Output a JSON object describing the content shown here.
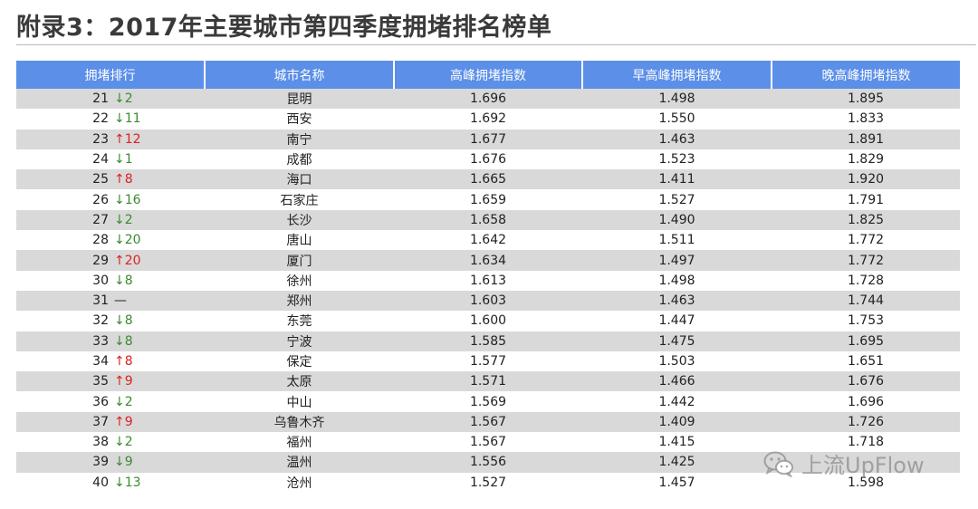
{
  "title": "附录3：2017年主要城市第四季度拥堵排名榜单",
  "table": {
    "headers": [
      "拥堵排行",
      "城市名称",
      "高峰拥堵指数",
      "早高峰拥堵指数",
      "晚高峰拥堵指数"
    ],
    "rows": [
      {
        "rank": "21",
        "change": "↓2",
        "dir": "down",
        "city": "昆明",
        "peak": "1.696",
        "morning": "1.498",
        "evening": "1.895"
      },
      {
        "rank": "22",
        "change": "↓11",
        "dir": "down",
        "city": "西安",
        "peak": "1.692",
        "morning": "1.550",
        "evening": "1.833"
      },
      {
        "rank": "23",
        "change": "↑12",
        "dir": "up",
        "city": "南宁",
        "peak": "1.677",
        "morning": "1.463",
        "evening": "1.891"
      },
      {
        "rank": "24",
        "change": "↓1",
        "dir": "down",
        "city": "成都",
        "peak": "1.676",
        "morning": "1.523",
        "evening": "1.829"
      },
      {
        "rank": "25",
        "change": "↑8",
        "dir": "up",
        "city": "海口",
        "peak": "1.665",
        "morning": "1.411",
        "evening": "1.920"
      },
      {
        "rank": "26",
        "change": "↓16",
        "dir": "down",
        "city": "石家庄",
        "peak": "1.659",
        "morning": "1.527",
        "evening": "1.791"
      },
      {
        "rank": "27",
        "change": "↓2",
        "dir": "down",
        "city": "长沙",
        "peak": "1.658",
        "morning": "1.490",
        "evening": "1.825"
      },
      {
        "rank": "28",
        "change": "↓20",
        "dir": "down",
        "city": "唐山",
        "peak": "1.642",
        "morning": "1.511",
        "evening": "1.772"
      },
      {
        "rank": "29",
        "change": "↑20",
        "dir": "up",
        "city": "厦门",
        "peak": "1.634",
        "morning": "1.497",
        "evening": "1.772"
      },
      {
        "rank": "30",
        "change": "↓8",
        "dir": "down",
        "city": "徐州",
        "peak": "1.613",
        "morning": "1.498",
        "evening": "1.728"
      },
      {
        "rank": "31",
        "change": "—",
        "dir": "same",
        "city": "郑州",
        "peak": "1.603",
        "morning": "1.463",
        "evening": "1.744"
      },
      {
        "rank": "32",
        "change": "↓8",
        "dir": "down",
        "city": "东莞",
        "peak": "1.600",
        "morning": "1.447",
        "evening": "1.753"
      },
      {
        "rank": "33",
        "change": "↓8",
        "dir": "down",
        "city": "宁波",
        "peak": "1.585",
        "morning": "1.475",
        "evening": "1.695"
      },
      {
        "rank": "34",
        "change": "↑8",
        "dir": "up",
        "city": "保定",
        "peak": "1.577",
        "morning": "1.503",
        "evening": "1.651"
      },
      {
        "rank": "35",
        "change": "↑9",
        "dir": "up",
        "city": "太原",
        "peak": "1.571",
        "morning": "1.466",
        "evening": "1.676"
      },
      {
        "rank": "36",
        "change": "↓2",
        "dir": "down",
        "city": "中山",
        "peak": "1.569",
        "morning": "1.442",
        "evening": "1.696"
      },
      {
        "rank": "37",
        "change": "↑9",
        "dir": "up",
        "city": "乌鲁木齐",
        "peak": "1.567",
        "morning": "1.409",
        "evening": "1.726"
      },
      {
        "rank": "38",
        "change": "↓2",
        "dir": "down",
        "city": "福州",
        "peak": "1.567",
        "morning": "1.415",
        "evening": "1.718"
      },
      {
        "rank": "39",
        "change": "↓9",
        "dir": "down",
        "city": "温州",
        "peak": "1.556",
        "morning": "1.425",
        "evening": ""
      },
      {
        "rank": "40",
        "change": "↓13",
        "dir": "down",
        "city": "沧州",
        "peak": "1.527",
        "morning": "1.457",
        "evening": "1.598"
      }
    ]
  },
  "watermark": {
    "text": "上流UpFlow",
    "icon": "wechat-icon"
  },
  "colors": {
    "header_bg": "#5b8fe8",
    "stripe": "#d9d9d9",
    "down": "#3a8a2e",
    "up": "#e02020"
  }
}
